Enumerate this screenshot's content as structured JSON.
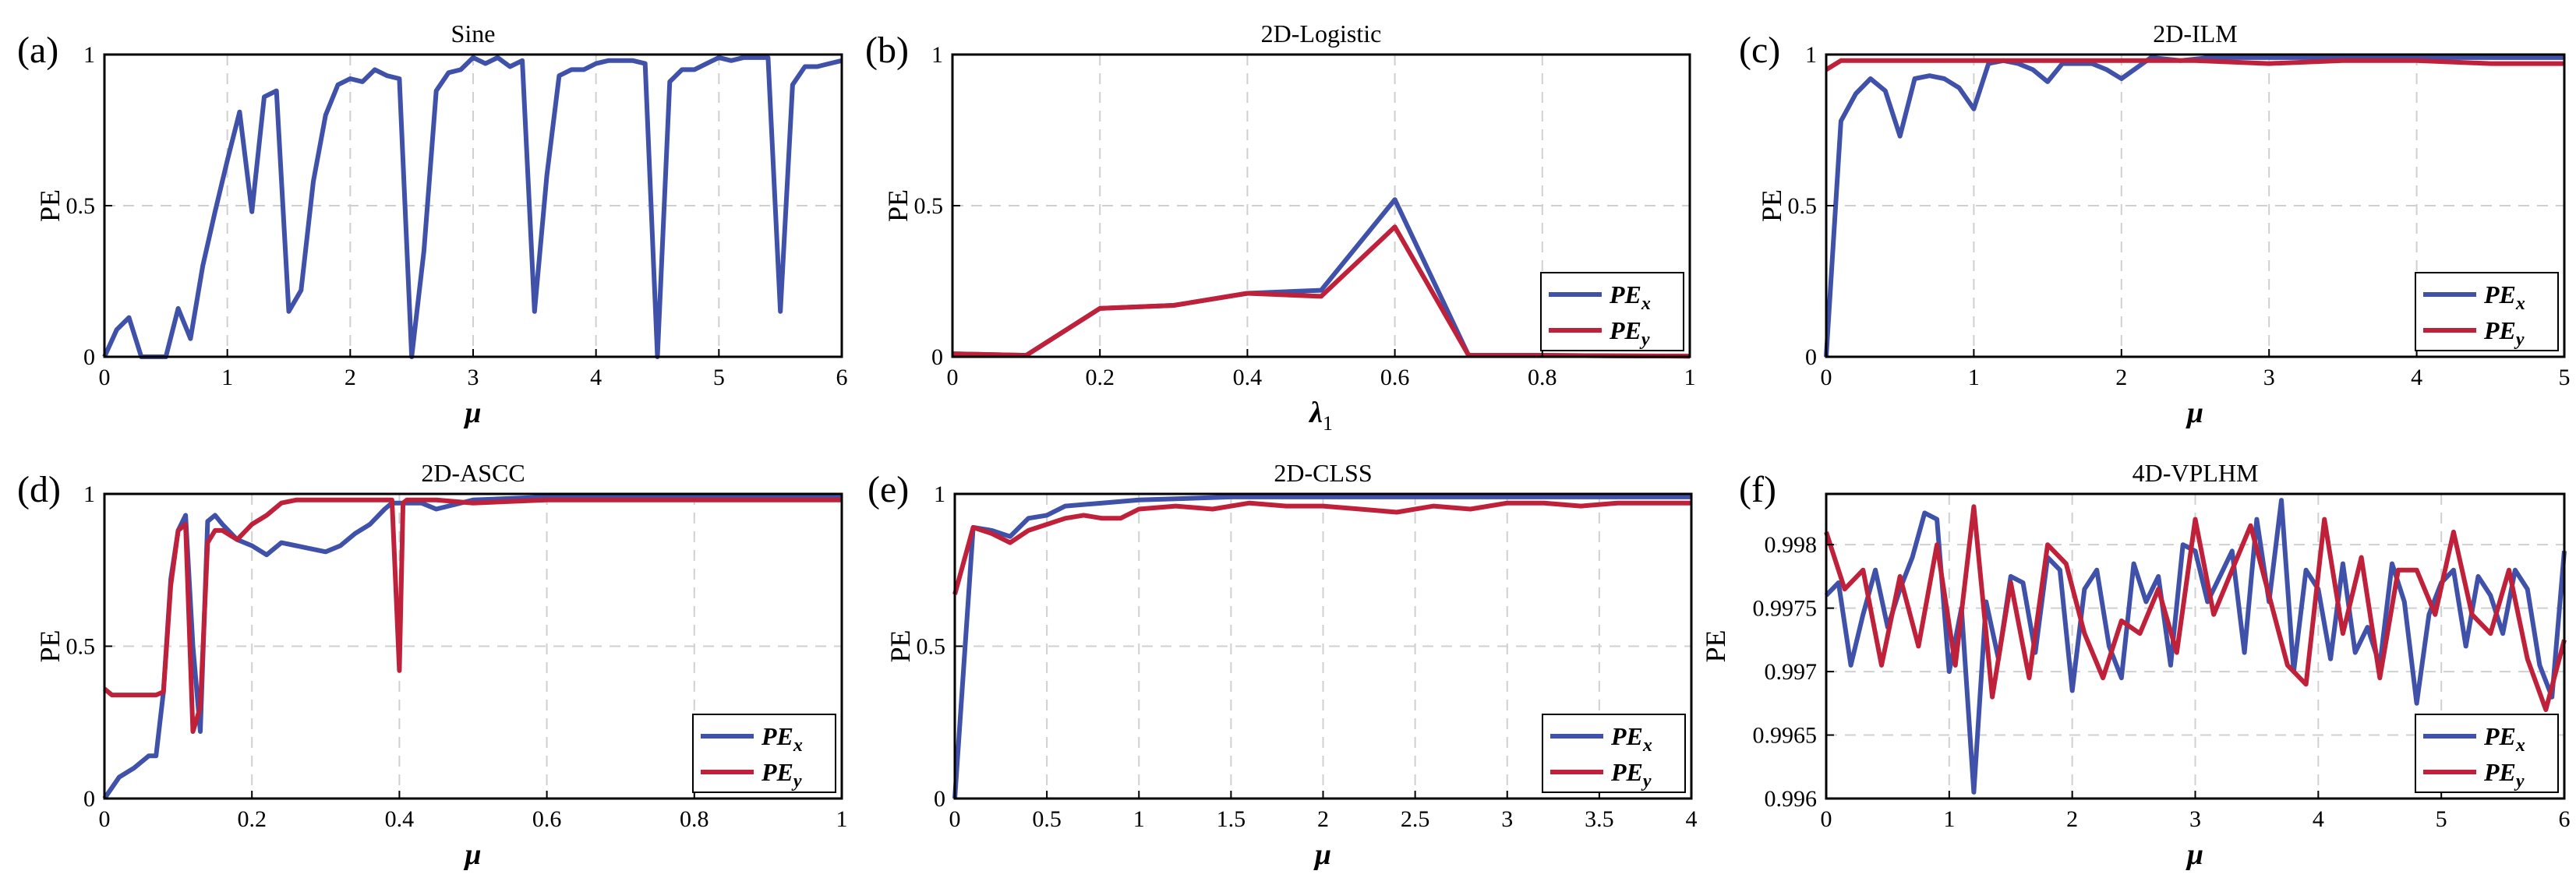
{
  "chart_data": [
    {
      "id": "a",
      "panel_label": "(a)",
      "type": "line",
      "title": "Sine",
      "xlabel": "μ",
      "ylabel": "PE",
      "xlim": [
        0,
        6
      ],
      "ylim": [
        0,
        1
      ],
      "xticks": [
        0,
        1,
        2,
        3,
        4,
        5,
        6
      ],
      "xtick_labels": [
        "0",
        "1",
        "2",
        "3",
        "4",
        "5",
        "6"
      ],
      "yticks": [
        0,
        0.5,
        1
      ],
      "ytick_labels": [
        "0",
        "0.5",
        "1"
      ],
      "legend": null,
      "series": [
        {
          "name": "PE_x",
          "color": "#3f51a8",
          "x": [
            0,
            0.1,
            0.2,
            0.3,
            0.4,
            0.5,
            0.6,
            0.7,
            0.8,
            0.9,
            1.0,
            1.1,
            1.2,
            1.3,
            1.4,
            1.5,
            1.6,
            1.7,
            1.8,
            1.9,
            2.0,
            2.1,
            2.2,
            2.3,
            2.4,
            2.5,
            2.6,
            2.7,
            2.8,
            2.9,
            3.0,
            3.1,
            3.2,
            3.3,
            3.4,
            3.5,
            3.6,
            3.7,
            3.8,
            3.9,
            4.0,
            4.1,
            4.2,
            4.3,
            4.4,
            4.5,
            4.6,
            4.7,
            4.8,
            4.9,
            5.0,
            5.1,
            5.2,
            5.3,
            5.4,
            5.5,
            5.6,
            5.7,
            5.8,
            5.9,
            6.0
          ],
          "y": [
            0,
            0.09,
            0.13,
            0,
            0,
            0,
            0.16,
            0.06,
            0.3,
            0.48,
            0.65,
            0.81,
            0.48,
            0.86,
            0.88,
            0.15,
            0.22,
            0.58,
            0.8,
            0.9,
            0.92,
            0.91,
            0.95,
            0.93,
            0.92,
            0,
            0.35,
            0.88,
            0.94,
            0.95,
            0.99,
            0.97,
            0.99,
            0.96,
            0.98,
            0.15,
            0.6,
            0.93,
            0.95,
            0.95,
            0.97,
            0.98,
            0.98,
            0.98,
            0.97,
            0,
            0.91,
            0.95,
            0.95,
            0.97,
            0.99,
            0.98,
            0.99,
            0.99,
            0.99,
            0.15,
            0.9,
            0.96,
            0.96,
            0.97,
            0.98
          ]
        }
      ]
    },
    {
      "id": "b",
      "panel_label": "(b)",
      "type": "line",
      "title": "2D-Logistic",
      "xlabel": "λ1",
      "ylabel": "PE",
      "xlim": [
        0,
        1
      ],
      "ylim": [
        0,
        1
      ],
      "xticks": [
        0,
        0.2,
        0.4,
        0.6,
        0.8,
        1
      ],
      "xtick_labels": [
        "0",
        "0.2",
        "0.4",
        "0.6",
        "0.8",
        "1"
      ],
      "yticks": [
        0,
        0.5,
        1
      ],
      "ytick_labels": [
        "0",
        "0.5",
        "1"
      ],
      "legend": {
        "entries": [
          "PE",
          "PE"
        ],
        "subscripts": [
          "x",
          "y"
        ]
      },
      "series": [
        {
          "name": "PE_x",
          "color": "#3f51a8",
          "x": [
            0,
            0.1,
            0.2,
            0.3,
            0.4,
            0.5,
            0.6,
            0.7,
            0.8,
            0.9,
            1.0
          ],
          "y": [
            0.01,
            0.005,
            0.16,
            0.17,
            0.21,
            0.22,
            0.52,
            0.005,
            0.005,
            0.003,
            0.002
          ]
        },
        {
          "name": "PE_y",
          "color": "#c0213a",
          "x": [
            0,
            0.1,
            0.2,
            0.3,
            0.4,
            0.5,
            0.6,
            0.7,
            0.8,
            0.9,
            1.0
          ],
          "y": [
            0.01,
            0.005,
            0.16,
            0.17,
            0.21,
            0.2,
            0.43,
            0.005,
            0.005,
            0.003,
            0.002
          ]
        }
      ]
    },
    {
      "id": "c",
      "panel_label": "(c)",
      "type": "line",
      "title": "2D-ILM",
      "xlabel": "μ",
      "ylabel": "PE",
      "xlim": [
        0,
        5
      ],
      "ylim": [
        0,
        1
      ],
      "xticks": [
        0,
        1,
        2,
        3,
        4,
        5
      ],
      "xtick_labels": [
        "0",
        "1",
        "2",
        "3",
        "4",
        "5"
      ],
      "yticks": [
        0,
        0.5,
        1
      ],
      "ytick_labels": [
        "0",
        "0.5",
        "1"
      ],
      "legend": {
        "entries": [
          "PE",
          "PE"
        ],
        "subscripts": [
          "x",
          "y"
        ]
      },
      "series": [
        {
          "name": "PE_x",
          "color": "#3f51a8",
          "x": [
            0,
            0.1,
            0.2,
            0.3,
            0.4,
            0.5,
            0.6,
            0.7,
            0.8,
            0.9,
            1.0,
            1.1,
            1.2,
            1.3,
            1.4,
            1.5,
            1.6,
            1.7,
            1.8,
            1.9,
            2.0,
            2.2,
            2.4,
            2.6,
            2.8,
            3.0,
            3.5,
            4.0,
            4.5,
            5.0
          ],
          "y": [
            0,
            0.78,
            0.87,
            0.92,
            0.88,
            0.73,
            0.92,
            0.93,
            0.92,
            0.89,
            0.82,
            0.97,
            0.98,
            0.97,
            0.95,
            0.91,
            0.97,
            0.97,
            0.97,
            0.95,
            0.92,
            0.99,
            0.98,
            0.99,
            0.99,
            0.99,
            0.99,
            0.99,
            0.99,
            0.99
          ]
        },
        {
          "name": "PE_y",
          "color": "#c0213a",
          "x": [
            0,
            0.1,
            0.2,
            0.5,
            1.0,
            1.5,
            2.0,
            2.5,
            3.0,
            3.5,
            4.0,
            4.5,
            5.0
          ],
          "y": [
            0.95,
            0.98,
            0.98,
            0.98,
            0.98,
            0.98,
            0.98,
            0.98,
            0.97,
            0.98,
            0.98,
            0.97,
            0.97
          ]
        }
      ]
    },
    {
      "id": "d",
      "panel_label": "(d)",
      "type": "line",
      "title": "2D-ASCC",
      "xlabel": "μ",
      "ylabel": "PE",
      "xlim": [
        0,
        1
      ],
      "ylim": [
        0,
        1
      ],
      "xticks": [
        0,
        0.2,
        0.4,
        0.6,
        0.8,
        1
      ],
      "xtick_labels": [
        "0",
        "0.2",
        "0.4",
        "0.6",
        "0.8",
        "1"
      ],
      "yticks": [
        0,
        0.5,
        1
      ],
      "ytick_labels": [
        "0",
        "0.5",
        "1"
      ],
      "legend": {
        "entries": [
          "PE",
          "PE"
        ],
        "subscripts": [
          "x",
          "y"
        ]
      },
      "series": [
        {
          "name": "PE_x",
          "color": "#3f51a8",
          "x": [
            0,
            0.02,
            0.04,
            0.06,
            0.07,
            0.08,
            0.09,
            0.1,
            0.11,
            0.12,
            0.13,
            0.14,
            0.15,
            0.16,
            0.18,
            0.2,
            0.22,
            0.24,
            0.26,
            0.28,
            0.3,
            0.32,
            0.34,
            0.36,
            0.38,
            0.39,
            0.4,
            0.41,
            0.43,
            0.45,
            0.5,
            0.6,
            0.7,
            0.8,
            0.9,
            1.0
          ],
          "y": [
            0,
            0.07,
            0.1,
            0.14,
            0.14,
            0.35,
            0.72,
            0.88,
            0.93,
            0.5,
            0.22,
            0.91,
            0.93,
            0.9,
            0.85,
            0.83,
            0.8,
            0.84,
            0.83,
            0.82,
            0.81,
            0.83,
            0.87,
            0.9,
            0.95,
            0.97,
            0.97,
            0.97,
            0.97,
            0.95,
            0.98,
            0.99,
            0.99,
            0.99,
            0.99,
            0.99
          ]
        },
        {
          "name": "PE_y",
          "color": "#c0213a",
          "x": [
            0,
            0.01,
            0.02,
            0.04,
            0.06,
            0.07,
            0.08,
            0.09,
            0.1,
            0.11,
            0.12,
            0.13,
            0.14,
            0.15,
            0.16,
            0.18,
            0.2,
            0.22,
            0.24,
            0.26,
            0.28,
            0.3,
            0.35,
            0.38,
            0.39,
            0.395,
            0.4,
            0.405,
            0.41,
            0.45,
            0.5,
            0.6,
            0.7,
            0.8,
            0.9,
            1.0
          ],
          "y": [
            0.36,
            0.34,
            0.34,
            0.34,
            0.34,
            0.34,
            0.35,
            0.7,
            0.88,
            0.9,
            0.22,
            0.3,
            0.84,
            0.88,
            0.88,
            0.85,
            0.9,
            0.93,
            0.97,
            0.98,
            0.98,
            0.98,
            0.98,
            0.98,
            0.98,
            0.7,
            0.42,
            0.97,
            0.98,
            0.98,
            0.97,
            0.98,
            0.98,
            0.98,
            0.98,
            0.98
          ]
        }
      ]
    },
    {
      "id": "e",
      "panel_label": "(e)",
      "type": "line",
      "title": "2D-CLSS",
      "xlabel": "μ",
      "ylabel": "PE",
      "xlim": [
        0,
        4
      ],
      "ylim": [
        0,
        1
      ],
      "xticks": [
        0,
        0.5,
        1,
        1.5,
        2,
        2.5,
        3,
        3.5,
        4
      ],
      "xtick_labels": [
        "0",
        "0.5",
        "1",
        "1.5",
        "2",
        "2.5",
        "3",
        "3.5",
        "4"
      ],
      "yticks": [
        0,
        0.5,
        1
      ],
      "ytick_labels": [
        "0",
        "0.5",
        "1"
      ],
      "legend": {
        "entries": [
          "PE",
          "PE"
        ],
        "subscripts": [
          "x",
          "y"
        ]
      },
      "series": [
        {
          "name": "PE_x",
          "color": "#3f51a8",
          "x": [
            0,
            0.1,
            0.2,
            0.3,
            0.4,
            0.5,
            0.6,
            0.8,
            1.0,
            1.5,
            2.0,
            2.5,
            3.0,
            3.5,
            4.0
          ],
          "y": [
            0,
            0.89,
            0.88,
            0.86,
            0.92,
            0.93,
            0.96,
            0.97,
            0.98,
            0.99,
            0.99,
            0.99,
            0.99,
            0.99,
            0.99
          ]
        },
        {
          "name": "PE_y",
          "color": "#c0213a",
          "x": [
            0,
            0.1,
            0.2,
            0.3,
            0.4,
            0.5,
            0.6,
            0.7,
            0.8,
            0.9,
            1.0,
            1.2,
            1.4,
            1.6,
            1.8,
            2.0,
            2.2,
            2.4,
            2.6,
            2.8,
            3.0,
            3.2,
            3.4,
            3.6,
            3.8,
            4.0
          ],
          "y": [
            0.67,
            0.89,
            0.87,
            0.84,
            0.88,
            0.9,
            0.92,
            0.93,
            0.92,
            0.92,
            0.95,
            0.96,
            0.95,
            0.97,
            0.96,
            0.96,
            0.95,
            0.94,
            0.96,
            0.95,
            0.97,
            0.97,
            0.96,
            0.97,
            0.97,
            0.97
          ]
        }
      ]
    },
    {
      "id": "f",
      "panel_label": "(f)",
      "type": "line",
      "title": "4D-VPLHM",
      "xlabel": "μ",
      "ylabel": "PE",
      "xlim": [
        0,
        6
      ],
      "ylim": [
        0.996,
        0.9984
      ],
      "xticks": [
        0,
        1,
        2,
        3,
        4,
        5,
        6
      ],
      "xtick_labels": [
        "0",
        "1",
        "2",
        "3",
        "4",
        "5",
        "6"
      ],
      "yticks": [
        0.996,
        0.9965,
        0.997,
        0.9975,
        0.998
      ],
      "ytick_labels": [
        "0.996",
        "0.9965",
        "0.997",
        "0.9975",
        "0.998"
      ],
      "legend": {
        "entries": [
          "PE",
          "PE"
        ],
        "subscripts": [
          "x",
          "y"
        ]
      },
      "series": [
        {
          "name": "PE_x",
          "color": "#3f51a8",
          "x": [
            0,
            0.1,
            0.2,
            0.3,
            0.4,
            0.5,
            0.6,
            0.7,
            0.8,
            0.9,
            1.0,
            1.1,
            1.2,
            1.3,
            1.4,
            1.5,
            1.6,
            1.7,
            1.8,
            1.9,
            2.0,
            2.1,
            2.2,
            2.3,
            2.4,
            2.5,
            2.6,
            2.7,
            2.8,
            2.9,
            3.0,
            3.1,
            3.2,
            3.3,
            3.4,
            3.5,
            3.6,
            3.7,
            3.8,
            3.9,
            4.0,
            4.1,
            4.2,
            4.3,
            4.4,
            4.5,
            4.6,
            4.7,
            4.8,
            4.9,
            5.0,
            5.1,
            5.2,
            5.3,
            5.4,
            5.5,
            5.6,
            5.7,
            5.8,
            5.9,
            6.0
          ],
          "y": [
            0.9976,
            0.9977,
            0.99705,
            0.99745,
            0.9978,
            0.99735,
            0.99765,
            0.9979,
            0.99825,
            0.9982,
            0.997,
            0.9975,
            0.99605,
            0.99755,
            0.9971,
            0.99775,
            0.9977,
            0.99715,
            0.9979,
            0.9978,
            0.99685,
            0.99765,
            0.9978,
            0.9972,
            0.99695,
            0.99785,
            0.99755,
            0.99775,
            0.99705,
            0.998,
            0.99795,
            0.99755,
            0.99775,
            0.99795,
            0.99715,
            0.9982,
            0.99755,
            0.99835,
            0.997,
            0.9978,
            0.99765,
            0.9971,
            0.99785,
            0.99715,
            0.99735,
            0.99705,
            0.99785,
            0.99755,
            0.99675,
            0.99745,
            0.9977,
            0.9978,
            0.9972,
            0.99775,
            0.9976,
            0.9973,
            0.9978,
            0.99765,
            0.99705,
            0.9968,
            0.99795
          ]
        },
        {
          "name": "PE_y",
          "color": "#c0213a",
          "x": [
            0,
            0.15,
            0.3,
            0.45,
            0.6,
            0.75,
            0.9,
            1.05,
            1.2,
            1.35,
            1.5,
            1.65,
            1.8,
            1.95,
            2.1,
            2.25,
            2.4,
            2.55,
            2.7,
            2.85,
            3.0,
            3.15,
            3.3,
            3.45,
            3.6,
            3.75,
            3.9,
            4.05,
            4.2,
            4.35,
            4.5,
            4.65,
            4.8,
            4.95,
            5.1,
            5.25,
            5.4,
            5.55,
            5.7,
            5.85,
            6.0
          ],
          "y": [
            0.9981,
            0.99765,
            0.9978,
            0.99705,
            0.99775,
            0.9972,
            0.998,
            0.99705,
            0.9983,
            0.9968,
            0.9977,
            0.99695,
            0.998,
            0.99785,
            0.9973,
            0.99695,
            0.9974,
            0.9973,
            0.99765,
            0.99715,
            0.9982,
            0.99745,
            0.9978,
            0.99815,
            0.9976,
            0.99705,
            0.9969,
            0.9982,
            0.9973,
            0.9979,
            0.99695,
            0.9978,
            0.9978,
            0.99745,
            0.9981,
            0.99745,
            0.9973,
            0.9978,
            0.9971,
            0.9967,
            0.99725
          ]
        }
      ]
    }
  ]
}
